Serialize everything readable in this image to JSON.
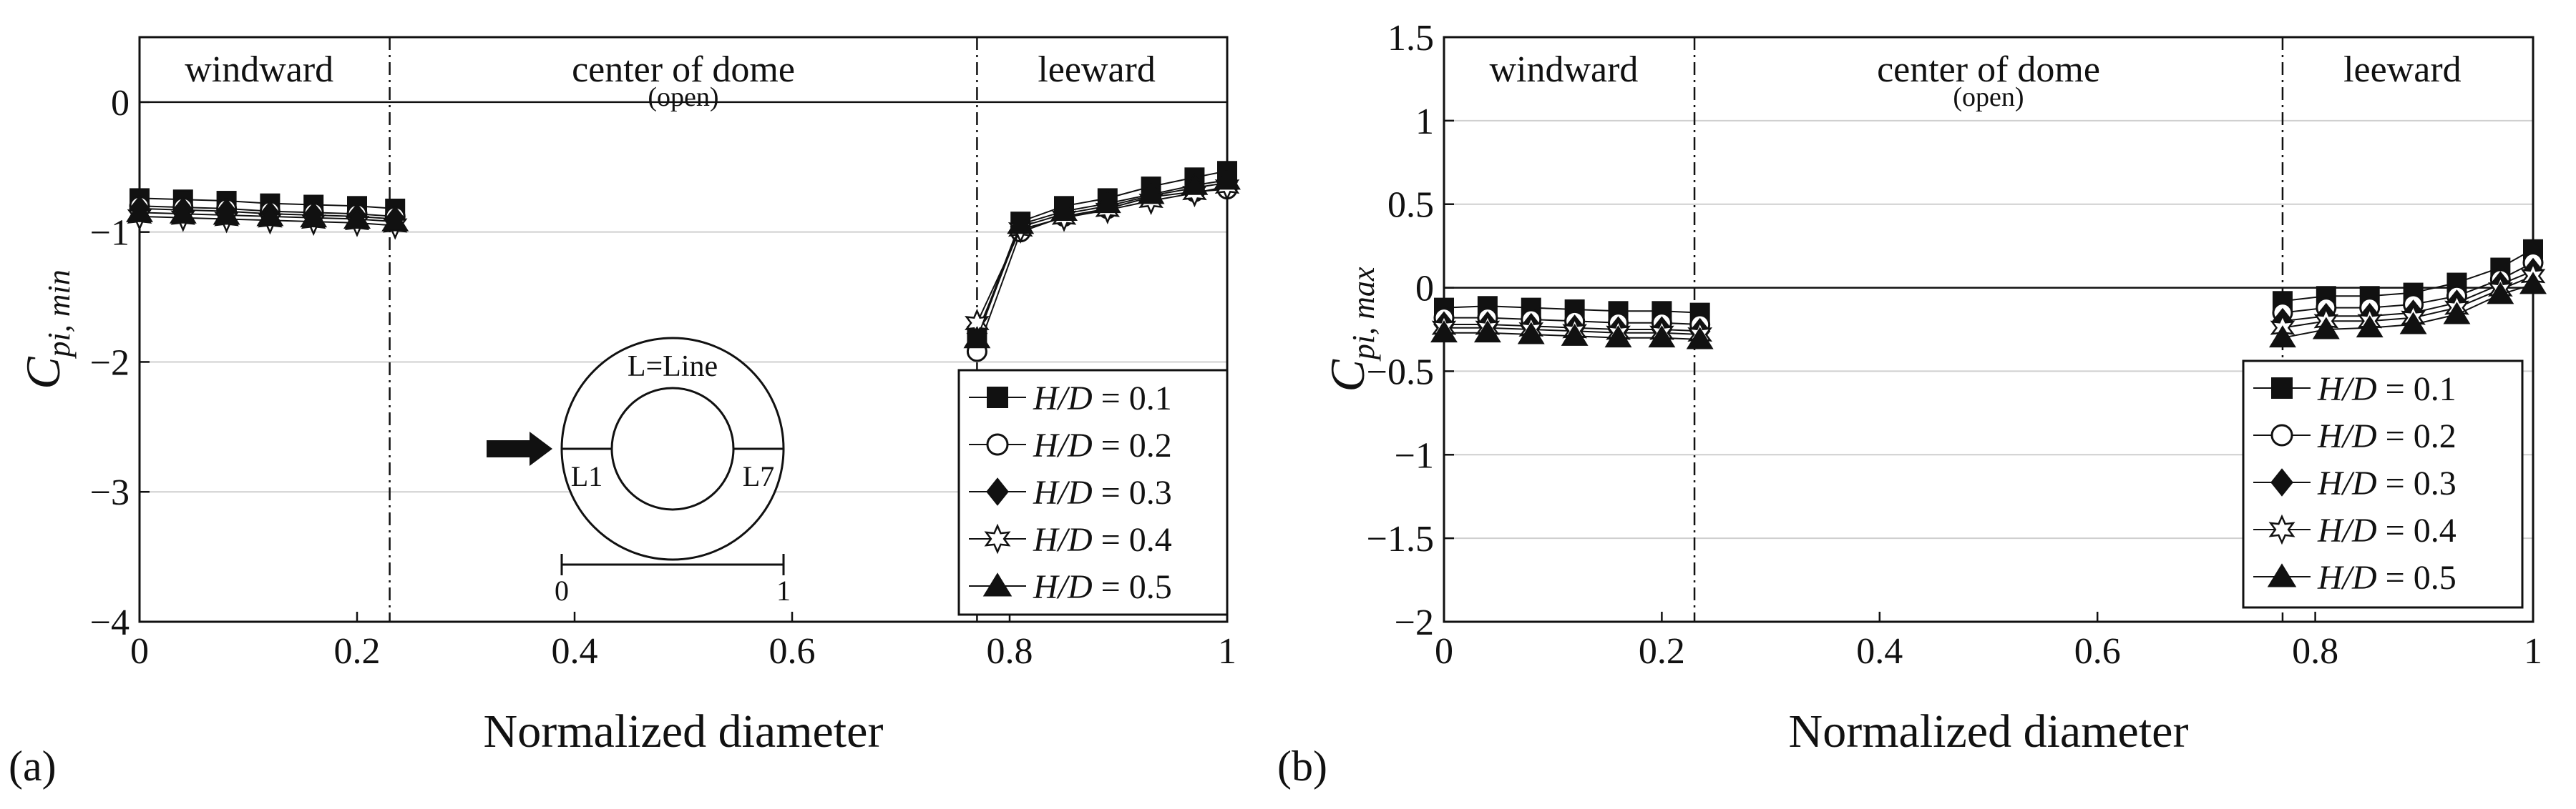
{
  "colors": {
    "line": "#111111",
    "grid": "#cfcfcf",
    "fill": "#111111",
    "hollow": "#ffffff"
  },
  "chart_data": [
    {
      "panel_label": "(a)",
      "type": "line",
      "xlabel": "Normalized diameter",
      "ylabel_main": "C",
      "ylabel_sub": "pi, min",
      "xlim": [
        0,
        1
      ],
      "ylim": [
        -4,
        0.5
      ],
      "xticks": [
        0,
        0.2,
        0.4,
        0.6,
        0.8,
        1
      ],
      "xtick_labels": [
        "0",
        "0.2",
        "0.4",
        "0.6",
        "0.8",
        "1"
      ],
      "yticks": [
        -4,
        -3,
        -2,
        -1,
        0
      ],
      "ytick_labels": [
        "−4",
        "−3",
        "−2",
        "−1",
        "0"
      ],
      "gridlines_y": [
        -3,
        -2,
        -1,
        0
      ],
      "vlines": [
        0.23,
        0.77
      ],
      "regions": [
        {
          "text": "windward",
          "x": 0.11,
          "sub": ""
        },
        {
          "text": "center of dome",
          "x": 0.5,
          "sub": "(open)"
        },
        {
          "text": "leeward",
          "x": 0.88,
          "sub": ""
        }
      ],
      "windward_x": [
        0,
        0.04,
        0.08,
        0.12,
        0.16,
        0.2,
        0.235
      ],
      "leeward_x": [
        0.77,
        0.81,
        0.85,
        0.89,
        0.93,
        0.97,
        1.0
      ],
      "series": [
        {
          "name": "H/D = 0.1",
          "label_italic": "H/D",
          "label_rest": " = 0.1",
          "marker": "square-filled",
          "windward": [
            -0.74,
            -0.75,
            -0.76,
            -0.78,
            -0.79,
            -0.8,
            -0.82
          ],
          "leeward": [
            -1.8,
            -0.92,
            -0.8,
            -0.74,
            -0.65,
            -0.58,
            -0.53
          ]
        },
        {
          "name": "H/D = 0.2",
          "label_italic": "H/D",
          "label_rest": " = 0.2",
          "marker": "circle-open",
          "windward": [
            -0.8,
            -0.81,
            -0.82,
            -0.84,
            -0.85,
            -0.86,
            -0.88
          ],
          "leeward": [
            -1.92,
            -1.0,
            -0.88,
            -0.82,
            -0.73,
            -0.69,
            -0.67
          ]
        },
        {
          "name": "H/D = 0.3",
          "label_italic": "H/D",
          "label_rest": " = 0.3",
          "marker": "diamond-filled",
          "windward": [
            -0.82,
            -0.83,
            -0.84,
            -0.86,
            -0.87,
            -0.88,
            -0.9
          ],
          "leeward": [
            -1.78,
            -0.96,
            -0.86,
            -0.8,
            -0.72,
            -0.66,
            -0.62
          ]
        },
        {
          "name": "H/D = 0.4",
          "label_italic": "H/D",
          "label_rest": " = 0.4",
          "marker": "star-open",
          "windward": [
            -0.88,
            -0.89,
            -0.9,
            -0.91,
            -0.92,
            -0.93,
            -0.95
          ],
          "leeward": [
            -1.7,
            -0.98,
            -0.89,
            -0.83,
            -0.76,
            -0.7,
            -0.65
          ]
        },
        {
          "name": "H/D = 0.5",
          "label_italic": "H/D",
          "label_rest": " = 0.5",
          "marker": "triangle-filled",
          "windward": [
            -0.85,
            -0.86,
            -0.87,
            -0.88,
            -0.89,
            -0.9,
            -0.92
          ],
          "leeward": [
            -1.82,
            -0.94,
            -0.84,
            -0.78,
            -0.71,
            -0.64,
            -0.6
          ]
        }
      ],
      "inset": {
        "title": "L=Line",
        "left_label": "L1",
        "right_label": "L7",
        "scale_start": "0",
        "scale_end": "1"
      }
    },
    {
      "panel_label": "(b)",
      "type": "line",
      "xlabel": "Normalized diameter",
      "ylabel_main": "C",
      "ylabel_sub": "pi, max",
      "xlim": [
        0,
        1
      ],
      "ylim": [
        -2,
        1.5
      ],
      "xticks": [
        0,
        0.2,
        0.4,
        0.6,
        0.8,
        1
      ],
      "xtick_labels": [
        "0",
        "0.2",
        "0.4",
        "0.6",
        "0.8",
        "1"
      ],
      "yticks": [
        -2,
        -1.5,
        -1,
        -0.5,
        0,
        0.5,
        1,
        1.5
      ],
      "ytick_labels": [
        "−2",
        "−1.5",
        "−1",
        "−0.5",
        "0",
        "0.5",
        "1",
        "1.5"
      ],
      "gridlines_y": [
        -1.5,
        -1,
        -0.5,
        0,
        0.5,
        1
      ],
      "vlines": [
        0.23,
        0.77
      ],
      "regions": [
        {
          "text": "windward",
          "x": 0.11,
          "sub": ""
        },
        {
          "text": "center of dome",
          "x": 0.5,
          "sub": "(open)"
        },
        {
          "text": "leeward",
          "x": 0.88,
          "sub": ""
        }
      ],
      "windward_x": [
        0,
        0.04,
        0.08,
        0.12,
        0.16,
        0.2,
        0.235
      ],
      "leeward_x": [
        0.77,
        0.81,
        0.85,
        0.89,
        0.93,
        0.97,
        1.0
      ],
      "series": [
        {
          "name": "H/D = 0.1",
          "label_italic": "H/D",
          "label_rest": " = 0.1",
          "marker": "square-filled",
          "windward": [
            -0.12,
            -0.11,
            -0.12,
            -0.13,
            -0.14,
            -0.14,
            -0.15
          ],
          "leeward": [
            -0.08,
            -0.05,
            -0.05,
            -0.03,
            0.03,
            0.12,
            0.23
          ]
        },
        {
          "name": "H/D = 0.2",
          "label_italic": "H/D",
          "label_rest": " = 0.2",
          "marker": "circle-open",
          "windward": [
            -0.18,
            -0.18,
            -0.19,
            -0.2,
            -0.21,
            -0.21,
            -0.22
          ],
          "leeward": [
            -0.15,
            -0.12,
            -0.12,
            -0.1,
            -0.05,
            0.05,
            0.15
          ]
        },
        {
          "name": "H/D = 0.3",
          "label_italic": "H/D",
          "label_rest": " = 0.3",
          "marker": "diamond-filled",
          "windward": [
            -0.22,
            -0.22,
            -0.23,
            -0.24,
            -0.25,
            -0.25,
            -0.26
          ],
          "leeward": [
            -0.2,
            -0.17,
            -0.17,
            -0.15,
            -0.09,
            0.02,
            0.1
          ]
        },
        {
          "name": "H/D = 0.4",
          "label_italic": "H/D",
          "label_rest": " = 0.4",
          "marker": "star-open",
          "windward": [
            -0.24,
            -0.24,
            -0.25,
            -0.26,
            -0.27,
            -0.27,
            -0.28
          ],
          "leeward": [
            -0.24,
            -0.2,
            -0.2,
            -0.18,
            -0.12,
            -0.01,
            0.07
          ]
        },
        {
          "name": "H/D = 0.5",
          "label_italic": "H/D",
          "label_rest": " = 0.5",
          "marker": "triangle-filled",
          "windward": [
            -0.27,
            -0.27,
            -0.28,
            -0.29,
            -0.3,
            -0.3,
            -0.31
          ],
          "leeward": [
            -0.3,
            -0.25,
            -0.24,
            -0.22,
            -0.16,
            -0.04,
            0.02
          ]
        }
      ]
    }
  ]
}
